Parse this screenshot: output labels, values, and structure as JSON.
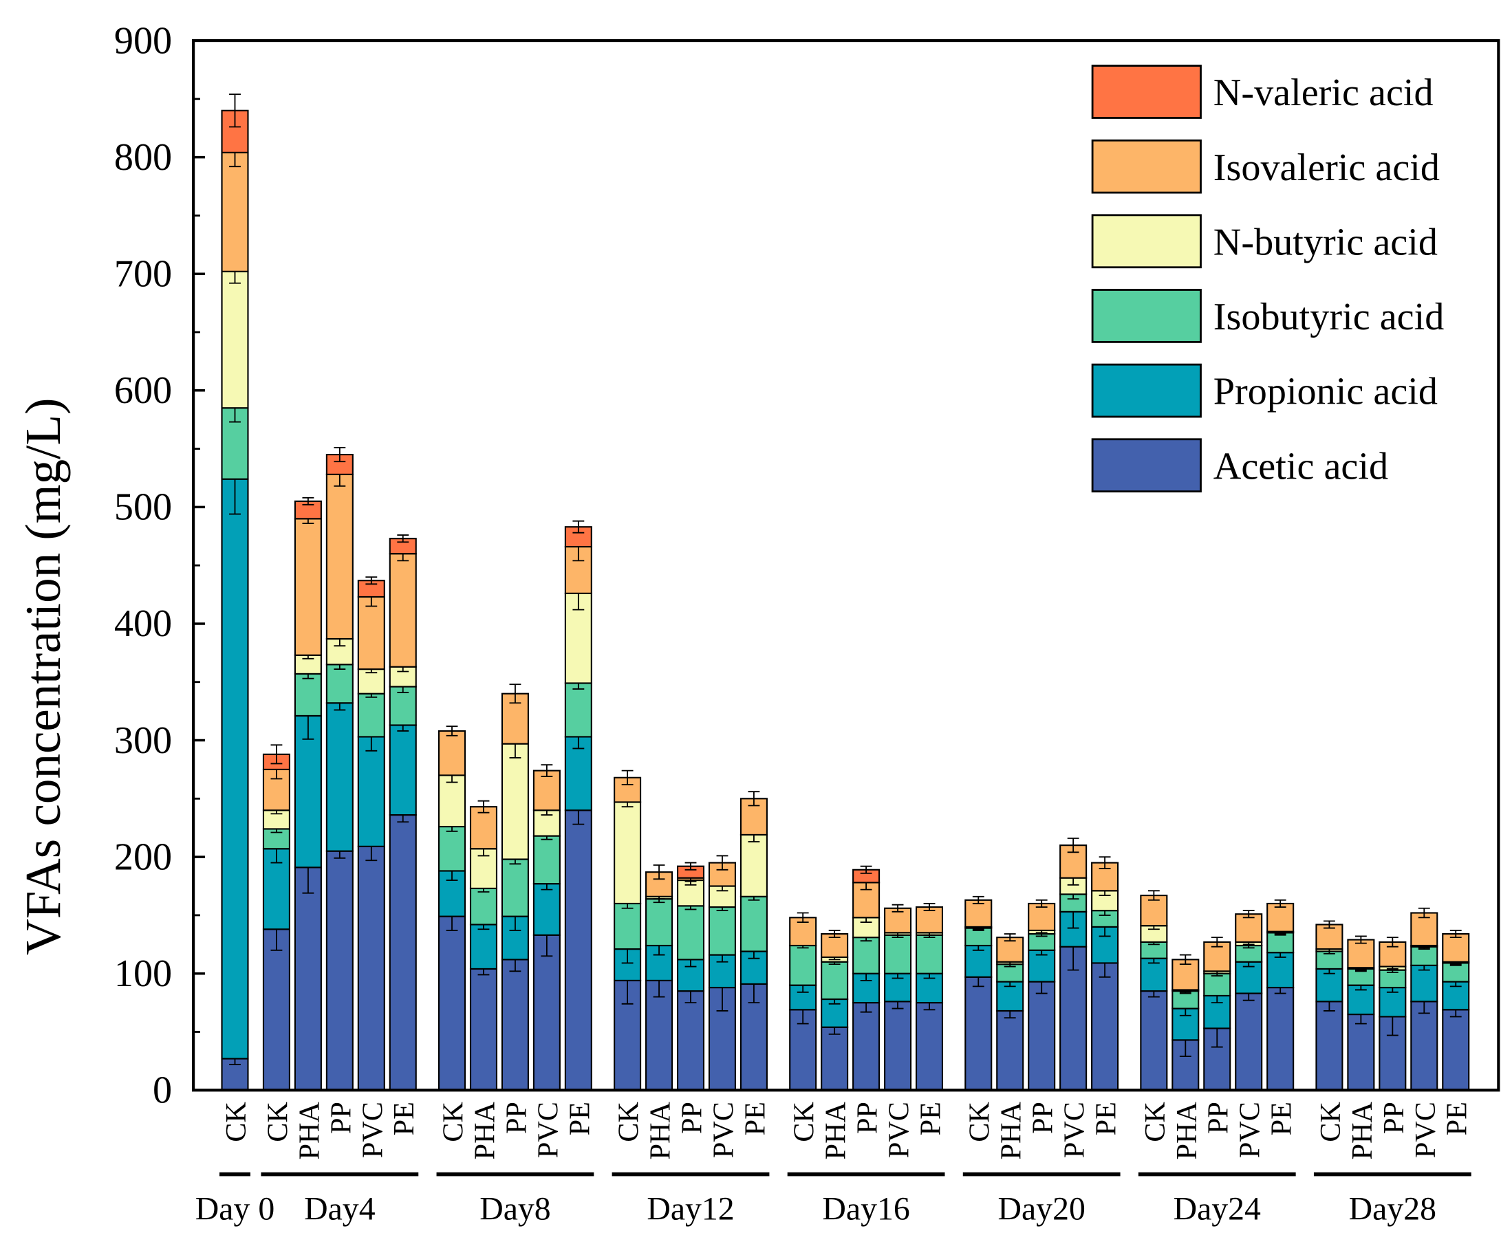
{
  "chart_data": {
    "type": "bar",
    "stacked": true,
    "title": "",
    "xlabel": "",
    "ylabel": "VFAs concentration (mg/L)",
    "ylim": [
      0,
      900
    ],
    "yticks": [
      "0",
      "100",
      "200",
      "300",
      "400",
      "500",
      "600",
      "700",
      "800",
      "900"
    ],
    "legend_position": "top-right",
    "groups": [
      {
        "label": "Day 0",
        "bars": [
          "CK"
        ]
      },
      {
        "label": "Day4",
        "bars": [
          "CK",
          "PHA",
          "PP",
          "PVC",
          "PE"
        ]
      },
      {
        "label": "Day8",
        "bars": [
          "CK",
          "PHA",
          "PP",
          "PVC",
          "PE"
        ]
      },
      {
        "label": "Day12",
        "bars": [
          "CK",
          "PHA",
          "PP",
          "PVC",
          "PE"
        ]
      },
      {
        "label": "Day16",
        "bars": [
          "CK",
          "PHA",
          "PP",
          "PVC",
          "PE"
        ]
      },
      {
        "label": "Day20",
        "bars": [
          "CK",
          "PHA",
          "PP",
          "PVC",
          "PE"
        ]
      },
      {
        "label": "Day24",
        "bars": [
          "CK",
          "PHA",
          "PP",
          "PVC",
          "PE"
        ]
      },
      {
        "label": "Day28",
        "bars": [
          "CK",
          "PHA",
          "PP",
          "PVC",
          "PE"
        ]
      }
    ],
    "series_order_bottom_to_top": [
      "Acetic acid",
      "Propionic acid",
      "Isobutyric acid",
      "N-butyric acid",
      "Isovaleric acid",
      "N-valeric acid"
    ],
    "series": [
      {
        "name": "Acetic acid",
        "color": "#4361AD",
        "values": [
          27,
          138,
          191,
          205,
          209,
          236,
          149,
          104,
          112,
          133,
          240,
          94,
          94,
          85,
          88,
          91,
          69,
          54,
          75,
          76,
          75,
          97,
          68,
          93,
          123,
          109,
          85,
          43,
          53,
          83,
          88,
          76,
          65,
          63,
          76,
          69
        ]
      },
      {
        "name": "Propionic acid",
        "color": "#02A0B7",
        "values": [
          497,
          69,
          130,
          127,
          94,
          77,
          39,
          38,
          37,
          44,
          63,
          27,
          30,
          27,
          28,
          28,
          21,
          24,
          25,
          24,
          25,
          27,
          25,
          27,
          30,
          31,
          28,
          27,
          28,
          27,
          30,
          28,
          25,
          25,
          31,
          24
        ]
      },
      {
        "name": "Isobutyric acid",
        "color": "#56CFA0",
        "values": [
          61,
          17,
          36,
          33,
          37,
          33,
          38,
          31,
          49,
          41,
          46,
          39,
          40,
          46,
          41,
          47,
          34,
          32,
          31,
          33,
          33,
          15,
          15,
          14,
          15,
          14,
          14,
          15,
          19,
          14,
          17,
          15,
          14,
          15,
          16,
          16
        ]
      },
      {
        "name": "N-butyric acid",
        "color": "#F6F9B4",
        "values": [
          117,
          16,
          16,
          22,
          21,
          17,
          44,
          34,
          99,
          22,
          77,
          87,
          2,
          22,
          18,
          53,
          0,
          4,
          17,
          2,
          2,
          1,
          2,
          3,
          14,
          17,
          14,
          1,
          2,
          3,
          1,
          2,
          1,
          3,
          1,
          1
        ]
      },
      {
        "name": "Isovaleric acid",
        "color": "#FDB568",
        "values": [
          102,
          35,
          117,
          141,
          62,
          97,
          38,
          36,
          43,
          34,
          40,
          21,
          21,
          2,
          20,
          31,
          24,
          20,
          30,
          21,
          22,
          23,
          21,
          23,
          28,
          24,
          26,
          26,
          25,
          24,
          24,
          21,
          24,
          21,
          28,
          24
        ]
      },
      {
        "name": "N-valeric acid",
        "color": "#FF7444",
        "values": [
          36,
          13,
          15,
          17,
          14,
          13,
          0,
          0,
          0,
          0,
          17,
          0,
          0,
          10,
          0,
          0,
          0,
          0,
          11,
          0,
          0,
          0,
          0,
          0,
          0,
          0,
          0,
          0,
          0,
          0,
          0,
          0,
          0,
          0,
          0,
          0
        ]
      }
    ],
    "errors": [
      [
        5,
        18,
        22,
        6,
        12,
        6,
        12,
        5,
        10,
        18,
        12,
        20,
        14,
        10,
        20,
        16,
        12,
        6,
        8,
        6,
        6,
        8,
        6,
        10,
        20,
        12,
        5,
        14,
        16,
        6,
        5,
        8,
        8,
        16,
        10,
        6
      ],
      [
        30,
        12,
        20,
        6,
        12,
        5,
        8,
        4,
        12,
        5,
        10,
        12,
        8,
        6,
        6,
        6,
        6,
        4,
        6,
        4,
        4,
        4,
        4,
        4,
        14,
        8,
        4,
        6,
        6,
        4,
        4,
        4,
        4,
        4,
        4,
        4
      ],
      [
        12,
        3,
        4,
        4,
        3,
        5,
        4,
        3,
        4,
        3,
        5,
        4,
        3,
        3,
        3,
        3,
        2,
        2,
        3,
        2,
        2,
        2,
        2,
        2,
        4,
        4,
        2,
        2,
        2,
        2,
        2,
        2,
        2,
        2,
        2,
        2
      ],
      [
        10,
        3,
        3,
        6,
        3,
        4,
        6,
        6,
        12,
        4,
        14,
        4,
        2,
        4,
        4,
        6,
        2,
        2,
        4,
        2,
        2,
        2,
        2,
        2,
        6,
        4,
        3,
        2,
        2,
        2,
        2,
        2,
        2,
        2,
        2,
        2
      ],
      [
        12,
        8,
        4,
        10,
        8,
        6,
        4,
        5,
        8,
        5,
        12,
        6,
        6,
        3,
        6,
        6,
        4,
        3,
        6,
        3,
        3,
        3,
        3,
        3,
        6,
        5,
        4,
        4,
        4,
        3,
        3,
        3,
        3,
        4,
        4,
        3
      ],
      [
        14,
        8,
        3,
        6,
        3,
        3,
        0,
        0,
        0,
        0,
        5,
        0,
        0,
        3,
        0,
        0,
        0,
        0,
        3,
        0,
        0,
        0,
        0,
        0,
        0,
        0,
        0,
        0,
        0,
        0,
        0,
        0,
        0,
        0,
        0,
        0
      ]
    ]
  }
}
